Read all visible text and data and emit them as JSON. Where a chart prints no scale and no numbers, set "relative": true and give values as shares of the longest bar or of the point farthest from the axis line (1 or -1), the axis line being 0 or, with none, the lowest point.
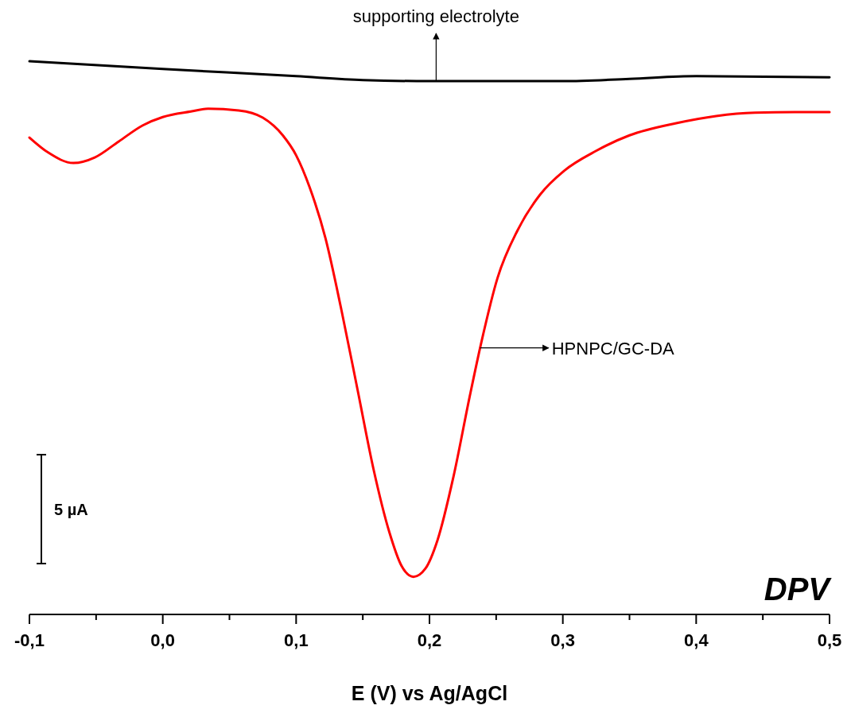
{
  "chart_data": {
    "type": "line",
    "relative": true,
    "xlabel": "E (V) vs Ag/AgCl",
    "annotations": [
      "DPV",
      "5 µA",
      {
        "text": "supporting electrolyte",
        "x": 0.205,
        "y": 0.964
      },
      "HPNPC/GC-DA"
    ],
    "xlim": [
      -0.1,
      0.5
    ],
    "xticks": [
      {
        "value": -0.1,
        "label": "-0,1"
      },
      {
        "value": -0.05,
        "label": null
      },
      {
        "value": 0,
        "label": "0,0"
      },
      {
        "value": 0.05,
        "label": null
      },
      {
        "value": 0.1,
        "label": "0,1"
      },
      {
        "value": 0.15,
        "label": null
      },
      {
        "value": 0.2,
        "label": "0,2"
      },
      {
        "value": 0.25,
        "label": null
      },
      {
        "value": 0.3,
        "label": "0,3"
      },
      {
        "value": 0.35,
        "label": null
      },
      {
        "value": 0.4,
        "label": "0,4"
      },
      {
        "value": 0.45,
        "label": null
      },
      {
        "value": 0.5,
        "label": "0,5"
      }
    ],
    "grid": false,
    "legend": false,
    "marker": "none",
    "line_style": "solid",
    "series": [
      {
        "color": "#000000",
        "x": [
          -0.1,
          0.0,
          0.1,
          0.15,
          0.2,
          0.25,
          0.3,
          0.35,
          0.4,
          0.5
        ],
        "values": [
          1.0,
          0.986,
          0.973,
          0.966,
          0.964,
          0.964,
          0.964,
          0.968,
          0.973,
          0.971
        ]
      },
      {
        "color": "#ff0000",
        "x": [
          -0.1,
          -0.086,
          -0.067,
          -0.051,
          -0.033,
          -0.015,
          0.0,
          0.021,
          0.034,
          0.057,
          0.075,
          0.09,
          0.1,
          0.11,
          0.122,
          0.134,
          0.146,
          0.158,
          0.17,
          0.179,
          0.188,
          0.197,
          0.206,
          0.218,
          0.23,
          0.239,
          0.251,
          0.266,
          0.283,
          0.301,
          0.325,
          0.35,
          0.385,
          0.415,
          0.444,
          0.474,
          0.5
        ],
        "values": [
          0.862,
          0.835,
          0.816,
          0.826,
          0.855,
          0.884,
          0.899,
          0.909,
          0.914,
          0.911,
          0.898,
          0.866,
          0.83,
          0.773,
          0.68,
          0.55,
          0.407,
          0.263,
          0.148,
          0.088,
          0.068,
          0.083,
          0.134,
          0.249,
          0.392,
          0.493,
          0.608,
          0.694,
          0.759,
          0.802,
          0.838,
          0.866,
          0.888,
          0.901,
          0.907,
          0.908,
          0.908
        ]
      }
    ]
  }
}
